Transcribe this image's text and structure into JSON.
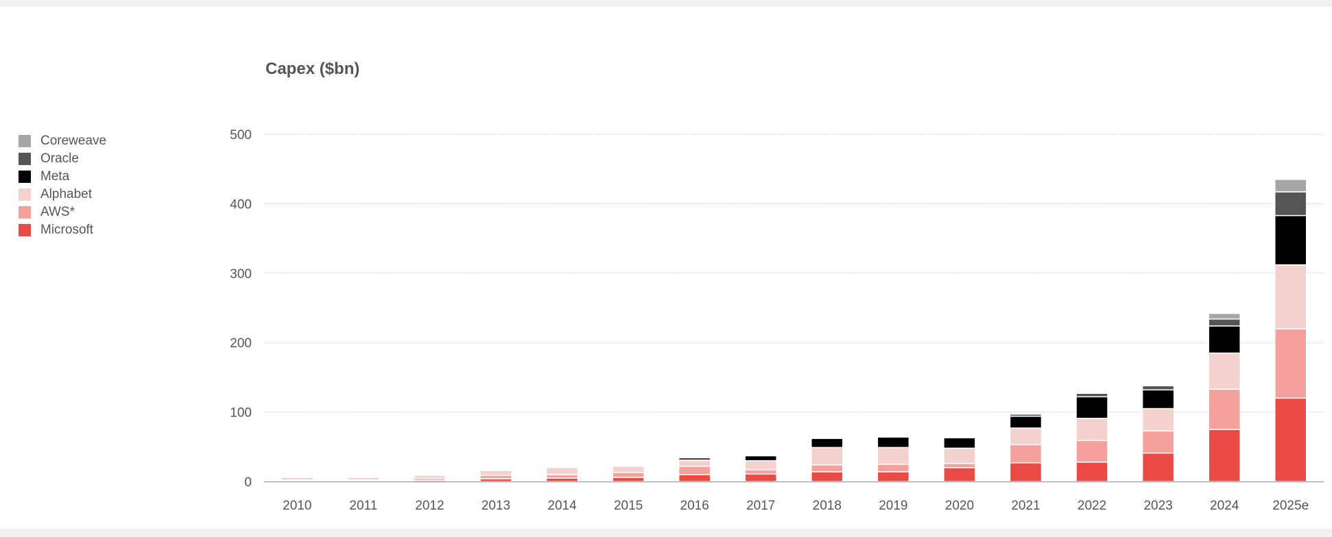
{
  "chart_data": {
    "type": "bar",
    "stacked": true,
    "title": "Capex ($bn)",
    "xlabel": "",
    "ylabel": "",
    "ylim": [
      0,
      500
    ],
    "yticks": [
      0,
      100,
      200,
      300,
      400,
      500
    ],
    "grid": true,
    "legend_position": "left",
    "categories": [
      "2010",
      "2011",
      "2012",
      "2013",
      "2014",
      "2015",
      "2016",
      "2017",
      "2018",
      "2019",
      "2020",
      "2021",
      "2022",
      "2023",
      "2024",
      "2025e"
    ],
    "series": [
      {
        "name": "Microsoft",
        "color": "#ea4a44",
        "values": [
          1,
          1,
          2,
          4,
          5,
          6,
          10,
          11,
          14,
          14,
          20,
          27,
          28,
          41,
          75,
          120
        ]
      },
      {
        "name": "AWS*",
        "color": "#f4a19d",
        "values": [
          1,
          1,
          3,
          5,
          5,
          7,
          12,
          6,
          10,
          11,
          6,
          26,
          31,
          32,
          58,
          100
        ]
      },
      {
        "name": "Alphabet",
        "color": "#f3d1cf",
        "values": [
          4,
          4,
          4,
          7,
          10,
          9,
          9,
          13,
          25,
          24,
          22,
          24,
          32,
          32,
          52,
          92
        ]
      },
      {
        "name": "Meta",
        "color": "#000000",
        "values": [
          0,
          0,
          1,
          1,
          1,
          1,
          3,
          7,
          13,
          15,
          15,
          17,
          31,
          27,
          39,
          71
        ]
      },
      {
        "name": "Oracle",
        "color": "#555555",
        "values": [
          0,
          0,
          0,
          0,
          0,
          0,
          0,
          0,
          0,
          0,
          0,
          3,
          5,
          6,
          10,
          34
        ]
      },
      {
        "name": "Coreweave",
        "color": "#a6a6a6",
        "values": [
          0,
          0,
          0,
          0,
          0,
          0,
          0,
          0,
          0,
          0,
          0,
          0,
          0,
          1,
          8,
          18
        ]
      }
    ],
    "legend_order": [
      "Coreweave",
      "Oracle",
      "Meta",
      "Alphabet",
      "AWS*",
      "Microsoft"
    ]
  }
}
